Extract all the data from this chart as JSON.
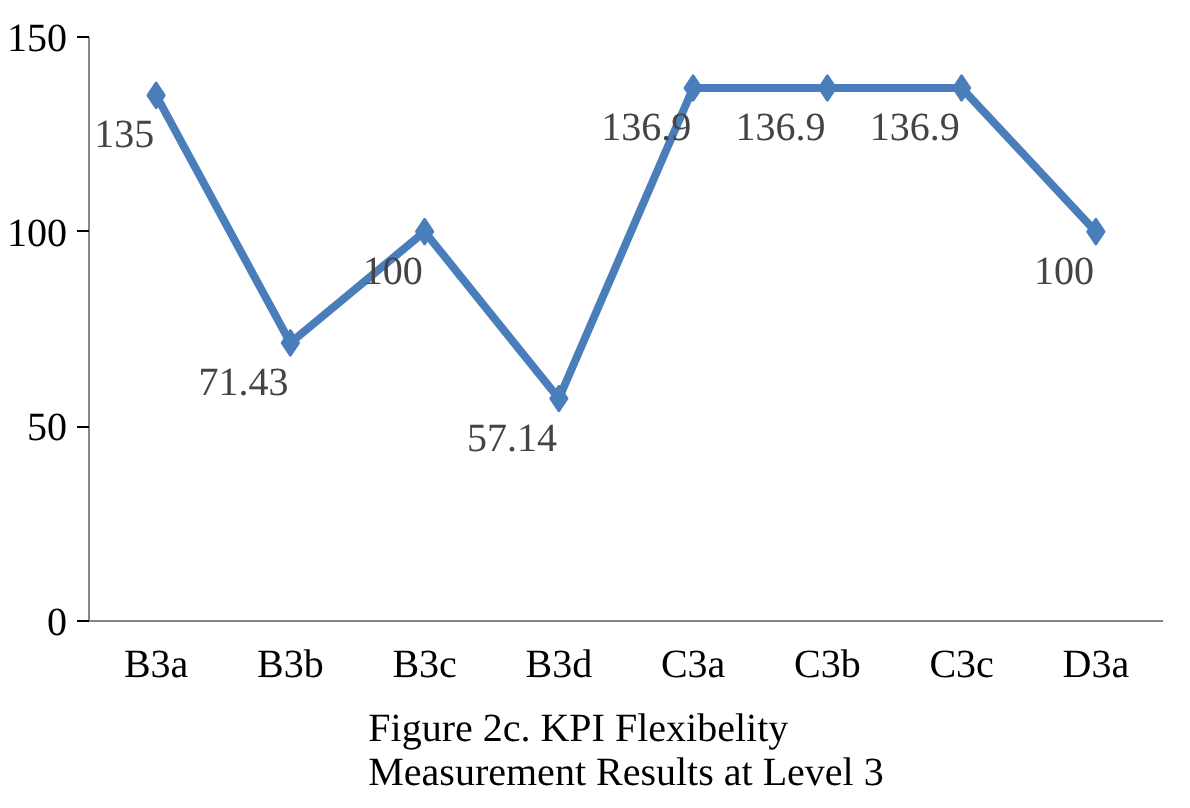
{
  "chart_data": {
    "type": "line",
    "title": "Figure 2c. KPI Flexibelity Measurement Results at Level 3",
    "categories": [
      "B3a",
      "B3b",
      "B3c",
      "B3d",
      "C3a",
      "C3b",
      "C3c",
      "D3a"
    ],
    "values": [
      135,
      71.43,
      100,
      57.14,
      136.9,
      136.9,
      136.9,
      100
    ],
    "color": "#4a7ebb",
    "marker": "diamond",
    "line_style": "solid",
    "data_labels": true,
    "ylim": [
      0,
      150
    ],
    "yticks": [
      0,
      50,
      100,
      150
    ],
    "grid": false
  }
}
